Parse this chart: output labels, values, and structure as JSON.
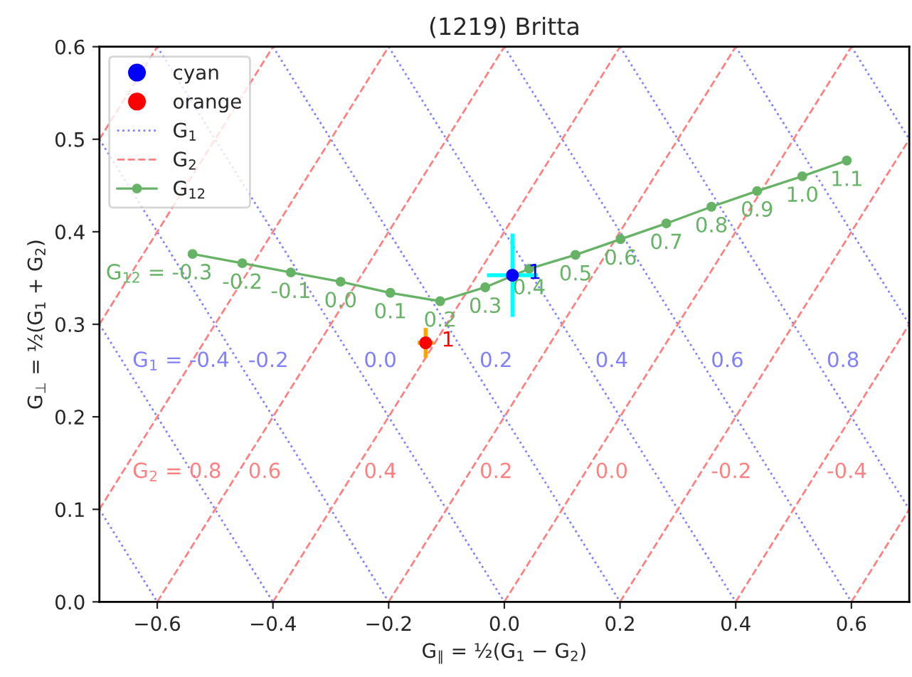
{
  "chart_data": {
    "type": "scatter",
    "title": "(1219) Britta",
    "xlabel": "G$_{∥}$ = ½(G$_{1}$ − G$_{2}$)",
    "ylabel": "G$_{⊥}$ = ½(G$_{1}$ + G$_{2}$)",
    "xlim": [
      -0.7,
      0.7
    ],
    "ylim": [
      0.0,
      0.6
    ],
    "xticks": [
      {
        "value": -0.6,
        "label": "−0.6"
      },
      {
        "value": -0.4,
        "label": "−0.4"
      },
      {
        "value": -0.2,
        "label": "−0.2"
      },
      {
        "value": 0,
        "label": "0.0"
      },
      0.2,
      0.4,
      0.6
    ],
    "yticks": [
      {
        "value": 0,
        "label": "0.0"
      },
      0.1,
      0.2,
      0.3,
      0.4,
      0.5,
      0.6
    ],
    "grid": false,
    "legend": "top left",
    "series": [
      {
        "name": "cyan",
        "color": "#00ffff",
        "colors": [
          "#0000ff"
        ],
        "marker": "circle",
        "x": [
          0.014
        ],
        "values": [
          0.353
        ],
        "errors": [
          0.045
        ],
        "xerrors": [
          0.044
        ]
      },
      {
        "name": "orange",
        "color": "#ffa500",
        "colors": [
          "#ff0000"
        ],
        "marker": "circle",
        "x": [
          -0.136
        ],
        "values": [
          0.28
        ],
        "errors": [
          0.016
        ],
        "xerrors": [
          0.014
        ]
      },
      {
        "type": "line",
        "name": "G$_{1}$",
        "color": "#8080ff",
        "line_style": "dotted",
        "marker": "none",
        "x": [
          -0.7,
          -0.6
        ],
        "values": [
          0.1,
          0.0
        ]
      },
      {
        "type": "line",
        "color": "#8080ff",
        "line_style": "dotted",
        "marker": "none",
        "x": [
          -0.7,
          -0.4
        ],
        "values": [
          0.3,
          0.0
        ]
      },
      {
        "type": "line",
        "color": "#8080ff",
        "line_style": "dotted",
        "marker": "none",
        "x": [
          -0.7,
          -0.2
        ],
        "values": [
          0.5,
          0.0
        ]
      },
      {
        "type": "line",
        "color": "#8080ff",
        "line_style": "dotted",
        "marker": "none",
        "x": [
          -0.6,
          0.0
        ],
        "values": [
          0.6,
          0.0
        ]
      },
      {
        "type": "line",
        "color": "#8080ff",
        "line_style": "dotted",
        "marker": "none",
        "x": [
          -0.4,
          0.2
        ],
        "values": [
          0.6,
          0.0
        ]
      },
      {
        "type": "line",
        "color": "#8080ff",
        "line_style": "dotted",
        "marker": "none",
        "x": [
          -0.2,
          0.4
        ],
        "values": [
          0.6,
          0.0
        ]
      },
      {
        "type": "line",
        "color": "#8080ff",
        "line_style": "dotted",
        "marker": "none",
        "x": [
          0.0,
          0.6
        ],
        "values": [
          0.6,
          0.0
        ]
      },
      {
        "type": "line",
        "color": "#8080ff",
        "line_style": "dotted",
        "marker": "none",
        "x": [
          0.2,
          0.7
        ],
        "values": [
          0.6,
          0.1
        ]
      },
      {
        "type": "line",
        "color": "#8080ff",
        "line_style": "dotted",
        "marker": "none",
        "x": [
          0.4,
          0.7
        ],
        "values": [
          0.6,
          0.3
        ]
      },
      {
        "type": "line",
        "color": "#8080ff",
        "line_style": "dotted",
        "marker": "none",
        "x": [
          0.6,
          0.7
        ],
        "values": [
          0.6,
          0.5
        ]
      },
      {
        "type": "line",
        "name": "G$_{2}$",
        "color": "#ff8080",
        "line_style": "dashed",
        "marker": "none",
        "x": [
          -0.7,
          -0.6
        ],
        "values": [
          0.5,
          0.6
        ]
      },
      {
        "type": "line",
        "color": "#ff8080",
        "line_style": "dashed",
        "marker": "none",
        "x": [
          -0.7,
          -0.4
        ],
        "values": [
          0.3,
          0.6
        ]
      },
      {
        "type": "line",
        "color": "#ff8080",
        "line_style": "dashed",
        "marker": "none",
        "x": [
          -0.7,
          -0.2
        ],
        "values": [
          0.1,
          0.6
        ]
      },
      {
        "type": "line",
        "color": "#ff8080",
        "line_style": "dashed",
        "marker": "none",
        "x": [
          -0.6,
          0.0
        ],
        "values": [
          0.0,
          0.6
        ]
      },
      {
        "type": "line",
        "color": "#ff8080",
        "line_style": "dashed",
        "marker": "none",
        "x": [
          -0.4,
          0.2
        ],
        "values": [
          0.0,
          0.6
        ]
      },
      {
        "type": "line",
        "color": "#ff8080",
        "line_style": "dashed",
        "marker": "none",
        "x": [
          -0.2,
          0.4
        ],
        "values": [
          0.0,
          0.6
        ]
      },
      {
        "type": "line",
        "color": "#ff8080",
        "line_style": "dashed",
        "marker": "none",
        "x": [
          0.0,
          0.6
        ],
        "values": [
          0.0,
          0.6
        ]
      },
      {
        "type": "line",
        "color": "#ff8080",
        "line_style": "dashed",
        "marker": "none",
        "x": [
          0.2,
          0.7
        ],
        "values": [
          0.0,
          0.5
        ]
      },
      {
        "type": "line",
        "color": "#ff8080",
        "line_style": "dashed",
        "marker": "none",
        "x": [
          0.4,
          0.7
        ],
        "values": [
          0.0,
          0.3
        ]
      },
      {
        "type": "line",
        "color": "#ff8080",
        "line_style": "dashed",
        "marker": "none",
        "x": [
          0.6,
          0.7
        ],
        "values": [
          0.0,
          0.1
        ]
      },
      {
        "type": "line",
        "name": "G$_{12}$",
        "color": "#66b366",
        "line_style": "solid",
        "marker": "circle",
        "x": [
          -0.539,
          -0.453,
          -0.369,
          -0.283,
          -0.197,
          -0.111,
          -0.033,
          0.043,
          0.123,
          0.201,
          0.28,
          0.358,
          0.437,
          0.515,
          0.592
        ],
        "values": [
          0.376,
          0.366,
          0.356,
          0.346,
          0.334,
          0.325,
          0.34,
          0.36,
          0.375,
          0.392,
          0.409,
          0.427,
          0.444,
          0.46,
          0.477
        ]
      }
    ],
    "annotations": [
      {
        "text": "1",
        "x": 0.014,
        "y": 0.353
      },
      {
        "text": "1",
        "x": -0.136,
        "y": 0.28
      },
      {
        "text": "G$_{12}$ = -0.3",
        "x": -0.539,
        "y": 0.376
      },
      {
        "text": "-0.2",
        "x": -0.453,
        "y": 0.366
      },
      {
        "text": "-0.1",
        "x": -0.369,
        "y": 0.356
      },
      {
        "text": "0.0",
        "x": -0.283,
        "y": 0.346
      },
      {
        "text": "0.1",
        "x": -0.197,
        "y": 0.334
      },
      {
        "text": "0.2",
        "x": -0.111,
        "y": 0.325
      },
      {
        "text": "0.3",
        "x": -0.033,
        "y": 0.34
      },
      {
        "text": "0.4",
        "x": 0.043,
        "y": 0.36
      },
      {
        "text": "0.5",
        "x": 0.123,
        "y": 0.375
      },
      {
        "text": "0.6",
        "x": 0.201,
        "y": 0.392
      },
      {
        "text": "0.7",
        "x": 0.28,
        "y": 0.409
      },
      {
        "text": "0.8",
        "x": 0.358,
        "y": 0.427
      },
      {
        "text": "0.9",
        "x": 0.437,
        "y": 0.444
      },
      {
        "text": "1.0",
        "x": 0.515,
        "y": 0.46
      },
      {
        "text": "1.1",
        "x": 0.592,
        "y": 0.477
      },
      {
        "text": "G$_{1}$ = -0.4",
        "x": -0.66,
        "y": 0.26
      },
      {
        "text": "-0.2",
        "x": -0.46,
        "y": 0.26
      },
      {
        "text": "0.0",
        "x": -0.26,
        "y": 0.26
      },
      {
        "text": "0.2",
        "x": -0.06,
        "y": 0.26
      },
      {
        "text": "0.4",
        "x": 0.14,
        "y": 0.26
      },
      {
        "text": "0.6",
        "x": 0.34,
        "y": 0.26
      },
      {
        "text": "0.8",
        "x": 0.54,
        "y": 0.26
      },
      {
        "text": "G$_{2}$ = 0.8",
        "x": -0.66,
        "y": 0.14
      },
      {
        "text": "0.6",
        "x": -0.46,
        "y": 0.14
      },
      {
        "text": "0.4",
        "x": -0.26,
        "y": 0.14
      },
      {
        "text": "0.2",
        "x": -0.06,
        "y": 0.14
      },
      {
        "text": "0.0",
        "x": 0.14,
        "y": 0.14
      },
      {
        "text": "-0.2",
        "x": 0.34,
        "y": 0.14
      },
      {
        "text": "-0.4",
        "x": 0.54,
        "y": 0.14
      }
    ]
  }
}
